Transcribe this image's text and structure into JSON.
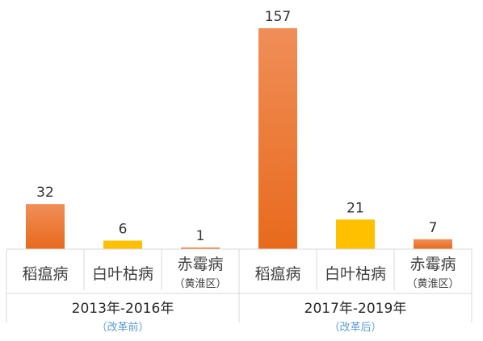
{
  "chart_data": {
    "type": "bar",
    "groups": [
      {
        "label": "2013年-2016年",
        "sublabel": "（改革前）",
        "categories": [
          {
            "name": "稻瘟病",
            "note": "",
            "value": 32,
            "color": "#ed7d31"
          },
          {
            "name": "白叶枯病",
            "note": "",
            "value": 6,
            "color": "#ffc000"
          },
          {
            "name": "赤霉病",
            "note": "（黄淮区）",
            "value": 1,
            "color": "#ed7d31"
          }
        ]
      },
      {
        "label": "2017年-2019年",
        "sublabel": "（改革后）",
        "categories": [
          {
            "name": "稻瘟病",
            "note": "",
            "value": 157,
            "color": "#ed7d31"
          },
          {
            "name": "白叶枯病",
            "note": "",
            "value": 21,
            "color": "#ffc000"
          },
          {
            "name": "赤霉病",
            "note": "（黄淮区）",
            "value": 7,
            "color": "#ed7d31"
          }
        ]
      }
    ],
    "ylim": [
      0,
      157
    ],
    "grid": false,
    "legend": "none"
  }
}
